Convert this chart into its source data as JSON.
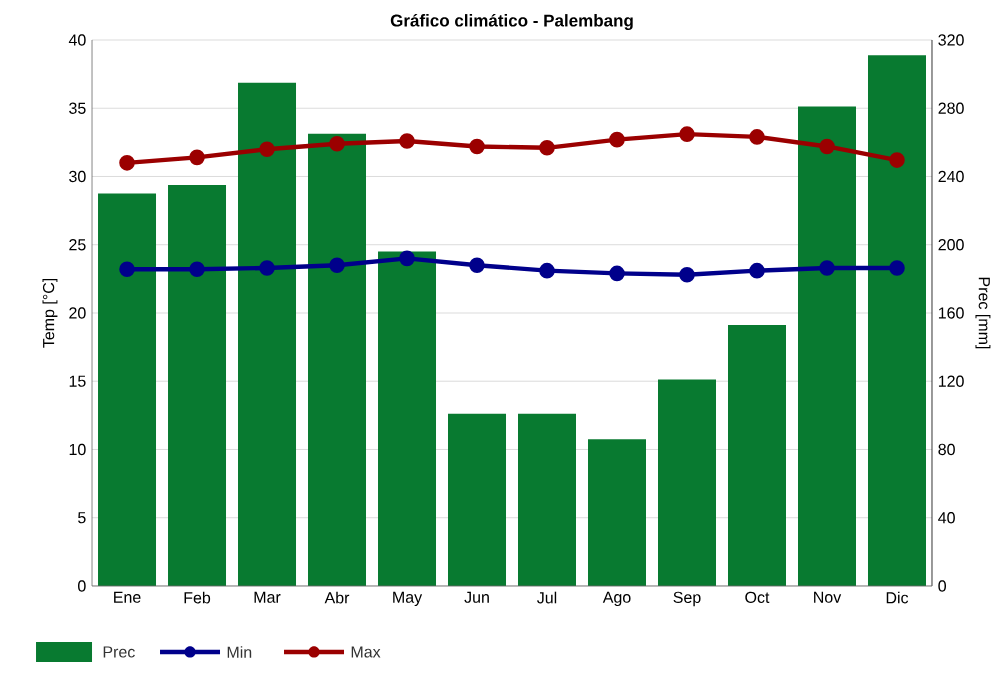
{
  "chart_data": {
    "type": "line",
    "title": "Gráfico climático - Palembang",
    "categories": [
      "Ene",
      "Feb",
      "Mar",
      "Abr",
      "May",
      "Jun",
      "Jul",
      "Ago",
      "Sep",
      "Oct",
      "Nov",
      "Dic"
    ],
    "ylabel": "Temp [°C]",
    "y2label": "Prec [mm]",
    "ylim": [
      0,
      40
    ],
    "yticks": [
      0,
      5,
      10,
      15,
      20,
      25,
      30,
      35,
      40
    ],
    "y2lim": [
      0,
      320
    ],
    "y2ticks": [
      0,
      40,
      80,
      120,
      160,
      200,
      240,
      280,
      320
    ],
    "grid": "y",
    "legend": "bottom",
    "marker": "circle",
    "series": [
      {
        "name": "Prec",
        "type": "bar",
        "axis": "y2",
        "color": "#087a30",
        "values": [
          230,
          235,
          295,
          265,
          196,
          101,
          101,
          86,
          121,
          153,
          281,
          311
        ]
      },
      {
        "name": "Min",
        "color": "#00008b",
        "values": [
          23.2,
          23.2,
          23.3,
          23.5,
          24.0,
          23.5,
          23.1,
          22.9,
          22.8,
          23.1,
          23.3,
          23.3
        ]
      },
      {
        "name": "Max",
        "color": "#9b0000",
        "values": [
          31.0,
          31.4,
          32.0,
          32.4,
          32.6,
          32.2,
          32.1,
          32.7,
          33.1,
          32.9,
          32.2,
          31.2
        ]
      }
    ]
  }
}
